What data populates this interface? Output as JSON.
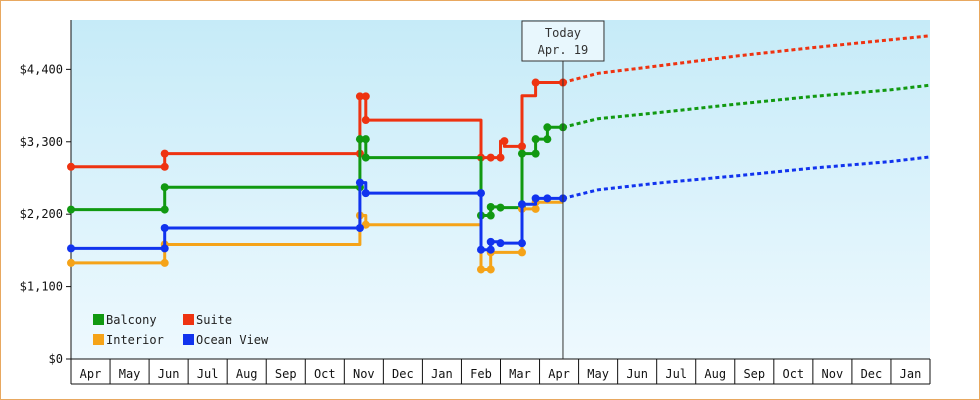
{
  "chart_data": {
    "type": "line",
    "y_ticks": [
      "$0",
      "$1,100",
      "$2,200",
      "$3,300",
      "$4,400"
    ],
    "y_tick_values": [
      0,
      1100,
      2200,
      3300,
      4400
    ],
    "ylim": [
      0,
      5150
    ],
    "x_months": [
      "Apr",
      "May",
      "Jun",
      "Jul",
      "Aug",
      "Sep",
      "Oct",
      "Nov",
      "Dec",
      "Jan",
      "Feb",
      "Mar",
      "Apr",
      "May",
      "Jun",
      "Jul",
      "Aug",
      "Sep",
      "Oct",
      "Nov",
      "Dec",
      "Jan"
    ],
    "xlim": [
      0,
      22
    ],
    "today": {
      "line1": "Today",
      "line2": "Apr. 19",
      "x": 12.6
    },
    "grid": false,
    "background": {
      "top": "#c6ebf8",
      "bottom": "#eef9fe"
    },
    "legend": {
      "placement": "bottom-left",
      "items": [
        {
          "label": "Balcony",
          "color": "#119911"
        },
        {
          "label": "Suite",
          "color": "#ee3311"
        },
        {
          "label": "Interior",
          "color": "#f5a318"
        },
        {
          "label": "Ocean View",
          "color": "#1133ee"
        }
      ]
    },
    "series": [
      {
        "name": "Suite",
        "color": "#ee3311",
        "step": [
          [
            0,
            2920
          ],
          [
            2.4,
            2920
          ],
          [
            2.4,
            3120
          ],
          [
            7.4,
            3120
          ],
          [
            7.4,
            3990
          ],
          [
            7.55,
            3990
          ],
          [
            7.55,
            3630
          ],
          [
            10.5,
            3630
          ],
          [
            10.5,
            3060
          ],
          [
            10.6,
            3060
          ],
          [
            10.6,
            3060
          ],
          [
            10.75,
            3060
          ],
          [
            10.75,
            3060
          ],
          [
            11.0,
            3060
          ],
          [
            11.0,
            3310
          ],
          [
            11.1,
            3310
          ],
          [
            11.1,
            3230
          ],
          [
            11.55,
            3230
          ],
          [
            11.55,
            4000
          ],
          [
            11.9,
            4000
          ],
          [
            11.9,
            4200
          ],
          [
            12.6,
            4200
          ]
        ],
        "markers": [
          [
            0,
            2920
          ],
          [
            2.4,
            2920
          ],
          [
            2.4,
            3120
          ],
          [
            7.4,
            3120
          ],
          [
            7.4,
            3990
          ],
          [
            7.55,
            3990
          ],
          [
            7.55,
            3630
          ],
          [
            10.5,
            3060
          ],
          [
            10.75,
            3060
          ],
          [
            11.0,
            3060
          ],
          [
            11.1,
            3310
          ],
          [
            11.55,
            3230
          ],
          [
            11.9,
            4200
          ],
          [
            12.6,
            4200
          ]
        ],
        "forecast": [
          [
            12.6,
            4200
          ],
          [
            13.5,
            4340
          ],
          [
            15,
            4450
          ],
          [
            17,
            4600
          ],
          [
            19,
            4730
          ],
          [
            21,
            4850
          ],
          [
            22,
            4910
          ]
        ]
      },
      {
        "name": "Balcony",
        "color": "#119911",
        "step": [
          [
            0,
            2270
          ],
          [
            2.4,
            2270
          ],
          [
            2.4,
            2610
          ],
          [
            7.4,
            2610
          ],
          [
            7.4,
            3340
          ],
          [
            7.55,
            3340
          ],
          [
            7.55,
            3060
          ],
          [
            10.5,
            3060
          ],
          [
            10.5,
            2180
          ],
          [
            10.75,
            2180
          ],
          [
            10.75,
            2310
          ],
          [
            11.0,
            2310
          ],
          [
            11.0,
            2300
          ],
          [
            11.55,
            2300
          ],
          [
            11.55,
            3120
          ],
          [
            11.9,
            3120
          ],
          [
            11.9,
            3340
          ],
          [
            12.2,
            3340
          ],
          [
            12.2,
            3520
          ],
          [
            12.6,
            3520
          ]
        ],
        "markers": [
          [
            0,
            2270
          ],
          [
            2.4,
            2270
          ],
          [
            2.4,
            2610
          ],
          [
            7.4,
            2610
          ],
          [
            7.4,
            3340
          ],
          [
            7.55,
            3340
          ],
          [
            7.55,
            3060
          ],
          [
            10.5,
            2180
          ],
          [
            10.75,
            2180
          ],
          [
            10.75,
            2310
          ],
          [
            11.0,
            2300
          ],
          [
            11.55,
            2300
          ],
          [
            11.55,
            3120
          ],
          [
            11.9,
            3120
          ],
          [
            11.9,
            3340
          ],
          [
            12.2,
            3340
          ],
          [
            12.2,
            3520
          ],
          [
            12.6,
            3520
          ]
        ],
        "forecast": [
          [
            12.6,
            3520
          ],
          [
            13.5,
            3650
          ],
          [
            15,
            3740
          ],
          [
            17,
            3870
          ],
          [
            19,
            3990
          ],
          [
            21,
            4090
          ],
          [
            22,
            4160
          ]
        ]
      },
      {
        "name": "Interior",
        "color": "#f5a318",
        "step": [
          [
            0,
            1460
          ],
          [
            2.4,
            1460
          ],
          [
            2.4,
            1740
          ],
          [
            7.4,
            1740
          ],
          [
            7.4,
            2180
          ],
          [
            7.55,
            2180
          ],
          [
            7.55,
            2040
          ],
          [
            10.5,
            2040
          ],
          [
            10.5,
            1360
          ],
          [
            10.75,
            1360
          ],
          [
            10.75,
            1620
          ],
          [
            11.0,
            1620
          ],
          [
            11.0,
            1620
          ],
          [
            11.55,
            1620
          ],
          [
            11.55,
            2280
          ],
          [
            11.9,
            2280
          ],
          [
            11.9,
            2380
          ],
          [
            12.6,
            2380
          ]
        ],
        "markers": [
          [
            0,
            1460
          ],
          [
            2.4,
            1460
          ],
          [
            2.4,
            1740
          ],
          [
            7.4,
            2180
          ],
          [
            7.55,
            2040
          ],
          [
            10.5,
            1360
          ],
          [
            10.75,
            1360
          ],
          [
            10.75,
            1620
          ],
          [
            11.55,
            1620
          ],
          [
            11.55,
            2280
          ],
          [
            11.9,
            2280
          ],
          [
            11.9,
            2380
          ]
        ],
        "forecast": []
      },
      {
        "name": "Ocean View",
        "color": "#1133ee",
        "step": [
          [
            0,
            1680
          ],
          [
            2.4,
            1680
          ],
          [
            2.4,
            1990
          ],
          [
            7.4,
            1990
          ],
          [
            7.4,
            2680
          ],
          [
            7.55,
            2680
          ],
          [
            7.55,
            2520
          ],
          [
            10.5,
            2520
          ],
          [
            10.5,
            1660
          ],
          [
            10.75,
            1660
          ],
          [
            10.75,
            1780
          ],
          [
            11.0,
            1780
          ],
          [
            11.0,
            1760
          ],
          [
            11.55,
            1760
          ],
          [
            11.55,
            2350
          ],
          [
            11.9,
            2350
          ],
          [
            11.9,
            2440
          ],
          [
            12.6,
            2440
          ]
        ],
        "markers": [
          [
            0,
            1680
          ],
          [
            2.4,
            1680
          ],
          [
            2.4,
            1990
          ],
          [
            7.4,
            1990
          ],
          [
            7.4,
            2680
          ],
          [
            7.55,
            2520
          ],
          [
            10.5,
            2520
          ],
          [
            10.5,
            1660
          ],
          [
            10.75,
            1660
          ],
          [
            10.75,
            1780
          ],
          [
            11.0,
            1760
          ],
          [
            11.55,
            1760
          ],
          [
            11.55,
            2350
          ],
          [
            11.9,
            2440
          ],
          [
            12.2,
            2440
          ],
          [
            12.6,
            2440
          ]
        ],
        "forecast": [
          [
            12.6,
            2440
          ],
          [
            13.5,
            2570
          ],
          [
            15,
            2670
          ],
          [
            17,
            2780
          ],
          [
            19,
            2900
          ],
          [
            21,
            3000
          ],
          [
            22,
            3070
          ]
        ]
      }
    ]
  }
}
